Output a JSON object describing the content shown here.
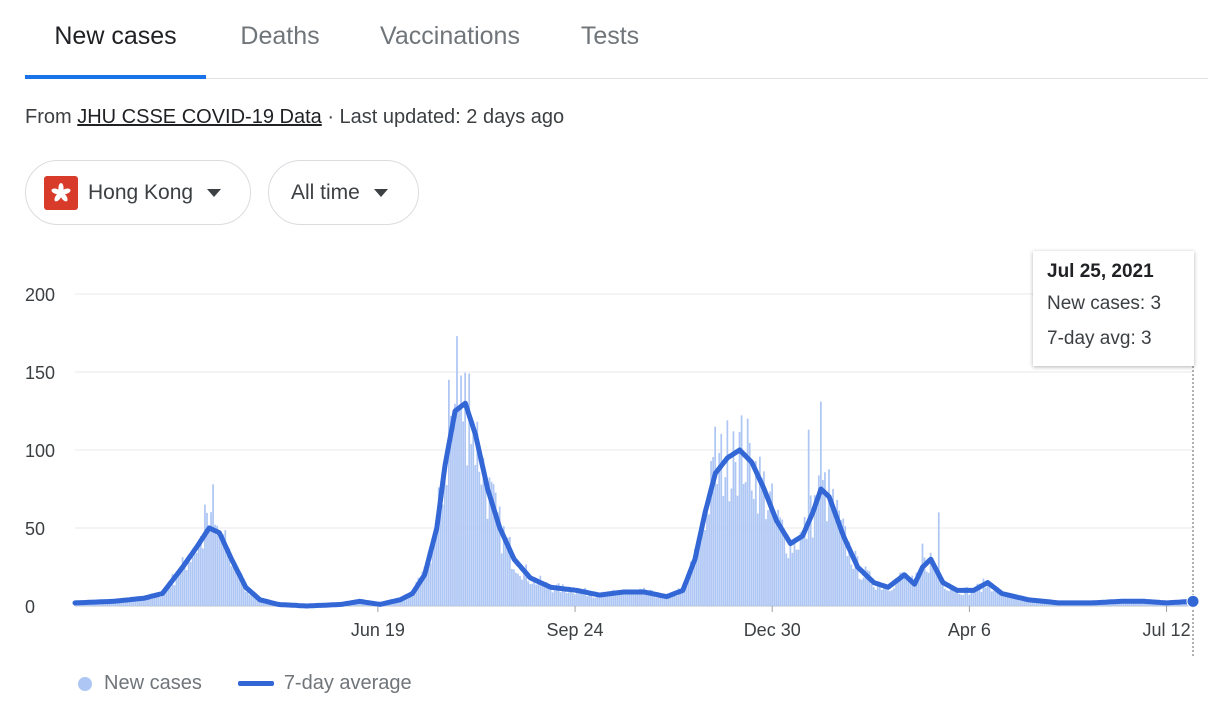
{
  "tabs": [
    {
      "label": "New cases",
      "active": true
    },
    {
      "label": "Deaths",
      "active": false
    },
    {
      "label": "Vaccinations",
      "active": false
    },
    {
      "label": "Tests",
      "active": false
    }
  ],
  "source": {
    "prefix": "From",
    "link": "JHU CSSE COVID-19 Data",
    "suffix": "· Last updated: 2 days ago"
  },
  "filters": {
    "location": "Hong Kong",
    "time_range": "All time"
  },
  "tooltip": {
    "date": "Jul 25, 2021",
    "new_cases_label": "New cases: 3",
    "avg_label": "7-day avg: 3"
  },
  "legend": {
    "bars": "New cases",
    "line": "7-day average"
  },
  "colors": {
    "bars": "#aec6f4",
    "line": "#3367d6",
    "accent": "#1a73e8"
  },
  "chart_data": {
    "type": "bar",
    "x_start": "2020-01-22",
    "x_end": "2021-07-25",
    "x_ticks": [
      {
        "label": "Jun 19",
        "date": "2020-06-19"
      },
      {
        "label": "Sep 24",
        "date": "2020-09-24"
      },
      {
        "label": "Dec 30",
        "date": "2020-12-30"
      },
      {
        "label": "Apr 6",
        "date": "2021-04-06"
      },
      {
        "label": "Jul 12",
        "date": "2021-07-12"
      }
    ],
    "y_ticks": [
      0,
      50,
      100,
      150,
      200
    ],
    "ylim": [
      0,
      200
    ],
    "series": [
      {
        "name": "7-day average",
        "points": [
          [
            "2020-01-22",
            2
          ],
          [
            "2020-02-10",
            3
          ],
          [
            "2020-02-25",
            5
          ],
          [
            "2020-03-05",
            8
          ],
          [
            "2020-03-15",
            25
          ],
          [
            "2020-03-22",
            38
          ],
          [
            "2020-03-28",
            50
          ],
          [
            "2020-04-02",
            47
          ],
          [
            "2020-04-08",
            30
          ],
          [
            "2020-04-15",
            12
          ],
          [
            "2020-04-22",
            4
          ],
          [
            "2020-05-01",
            1
          ],
          [
            "2020-05-15",
            0
          ],
          [
            "2020-06-01",
            1
          ],
          [
            "2020-06-10",
            3
          ],
          [
            "2020-06-20",
            1
          ],
          [
            "2020-06-30",
            4
          ],
          [
            "2020-07-06",
            8
          ],
          [
            "2020-07-12",
            20
          ],
          [
            "2020-07-18",
            50
          ],
          [
            "2020-07-22",
            90
          ],
          [
            "2020-07-27",
            125
          ],
          [
            "2020-08-01",
            130
          ],
          [
            "2020-08-06",
            110
          ],
          [
            "2020-08-12",
            75
          ],
          [
            "2020-08-18",
            50
          ],
          [
            "2020-08-25",
            30
          ],
          [
            "2020-09-02",
            18
          ],
          [
            "2020-09-12",
            12
          ],
          [
            "2020-09-25",
            10
          ],
          [
            "2020-10-06",
            7
          ],
          [
            "2020-10-18",
            9
          ],
          [
            "2020-10-28",
            9
          ],
          [
            "2020-11-08",
            6
          ],
          [
            "2020-11-16",
            10
          ],
          [
            "2020-11-22",
            30
          ],
          [
            "2020-11-27",
            60
          ],
          [
            "2020-12-02",
            85
          ],
          [
            "2020-12-08",
            95
          ],
          [
            "2020-12-14",
            100
          ],
          [
            "2020-12-20",
            92
          ],
          [
            "2020-12-26",
            75
          ],
          [
            "2021-01-01",
            55
          ],
          [
            "2021-01-08",
            40
          ],
          [
            "2021-01-14",
            45
          ],
          [
            "2021-01-19",
            60
          ],
          [
            "2021-01-23",
            75
          ],
          [
            "2021-01-27",
            70
          ],
          [
            "2021-02-03",
            45
          ],
          [
            "2021-02-10",
            25
          ],
          [
            "2021-02-18",
            15
          ],
          [
            "2021-02-25",
            12
          ],
          [
            "2021-03-05",
            20
          ],
          [
            "2021-03-10",
            14
          ],
          [
            "2021-03-14",
            25
          ],
          [
            "2021-03-18",
            30
          ],
          [
            "2021-03-24",
            15
          ],
          [
            "2021-03-31",
            10
          ],
          [
            "2021-04-08",
            10
          ],
          [
            "2021-04-15",
            15
          ],
          [
            "2021-04-22",
            8
          ],
          [
            "2021-05-05",
            4
          ],
          [
            "2021-05-20",
            2
          ],
          [
            "2021-06-05",
            2
          ],
          [
            "2021-06-20",
            3
          ],
          [
            "2021-07-01",
            3
          ],
          [
            "2021-07-12",
            2
          ],
          [
            "2021-07-25",
            3
          ]
        ]
      },
      {
        "name": "New cases",
        "peaks": [
          [
            "2020-03-30",
            78
          ],
          [
            "2020-03-26",
            65
          ],
          [
            "2020-07-28",
            173
          ],
          [
            "2020-08-03",
            149
          ],
          [
            "2020-07-24",
            145
          ],
          [
            "2020-12-02",
            115
          ],
          [
            "2020-12-11",
            112
          ],
          [
            "2021-01-23",
            131
          ],
          [
            "2021-01-17",
            113
          ],
          [
            "2021-03-22",
            60
          ],
          [
            "2021-03-14",
            40
          ]
        ]
      }
    ]
  }
}
